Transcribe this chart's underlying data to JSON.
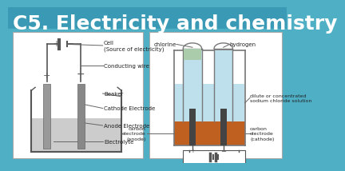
{
  "title": "C5. Electricity and chemistry",
  "title_color": "#FFFFFF",
  "title_fontsize": 18,
  "bg_color": "#4EAFC5",
  "bg_top_color": "#3A9AB5",
  "panel_bg": "#FFFFFF",
  "wire_color": "#555555",
  "electrode_color": "#888888",
  "electrolyte_color": "#CCCCCC",
  "label_fontsize": 5.5,
  "label_color": "#222222",
  "solution_color": "#BEE0EC",
  "orange_color": "#C06020",
  "carbon_color": "#444444",
  "tube_left_gas": "#AACC99",
  "tube_fill": "#BEE0EC"
}
